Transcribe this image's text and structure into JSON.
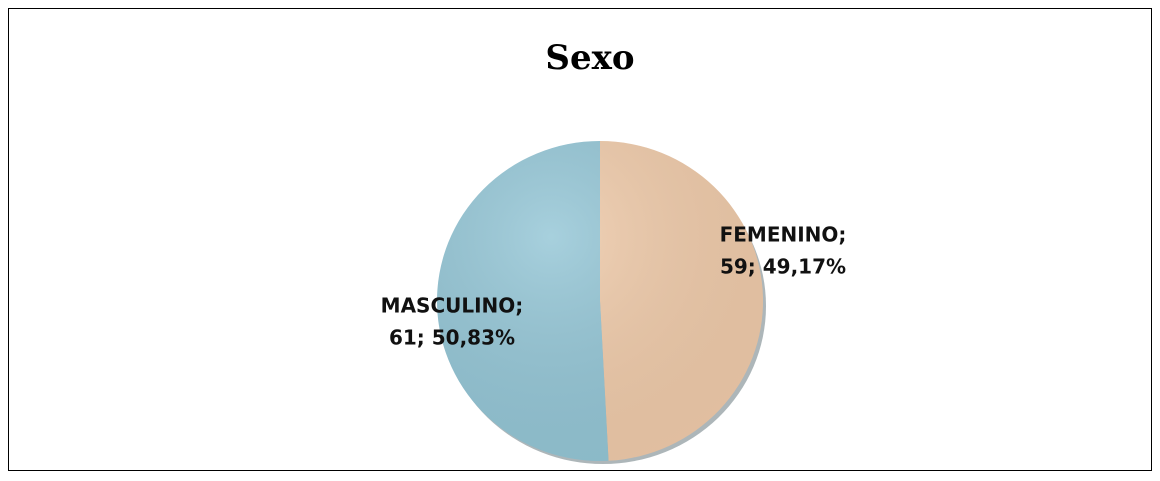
{
  "chart_data": {
    "type": "pie",
    "title": "Sexo",
    "categories": [
      "FEMENINO;",
      "MASCULINO;"
    ],
    "values": [
      59,
      61
    ],
    "value_labels": [
      "59; 49,17%",
      "61; 50,83%"
    ],
    "colors": [
      "#f0cbaa",
      "#94c6d6"
    ]
  }
}
